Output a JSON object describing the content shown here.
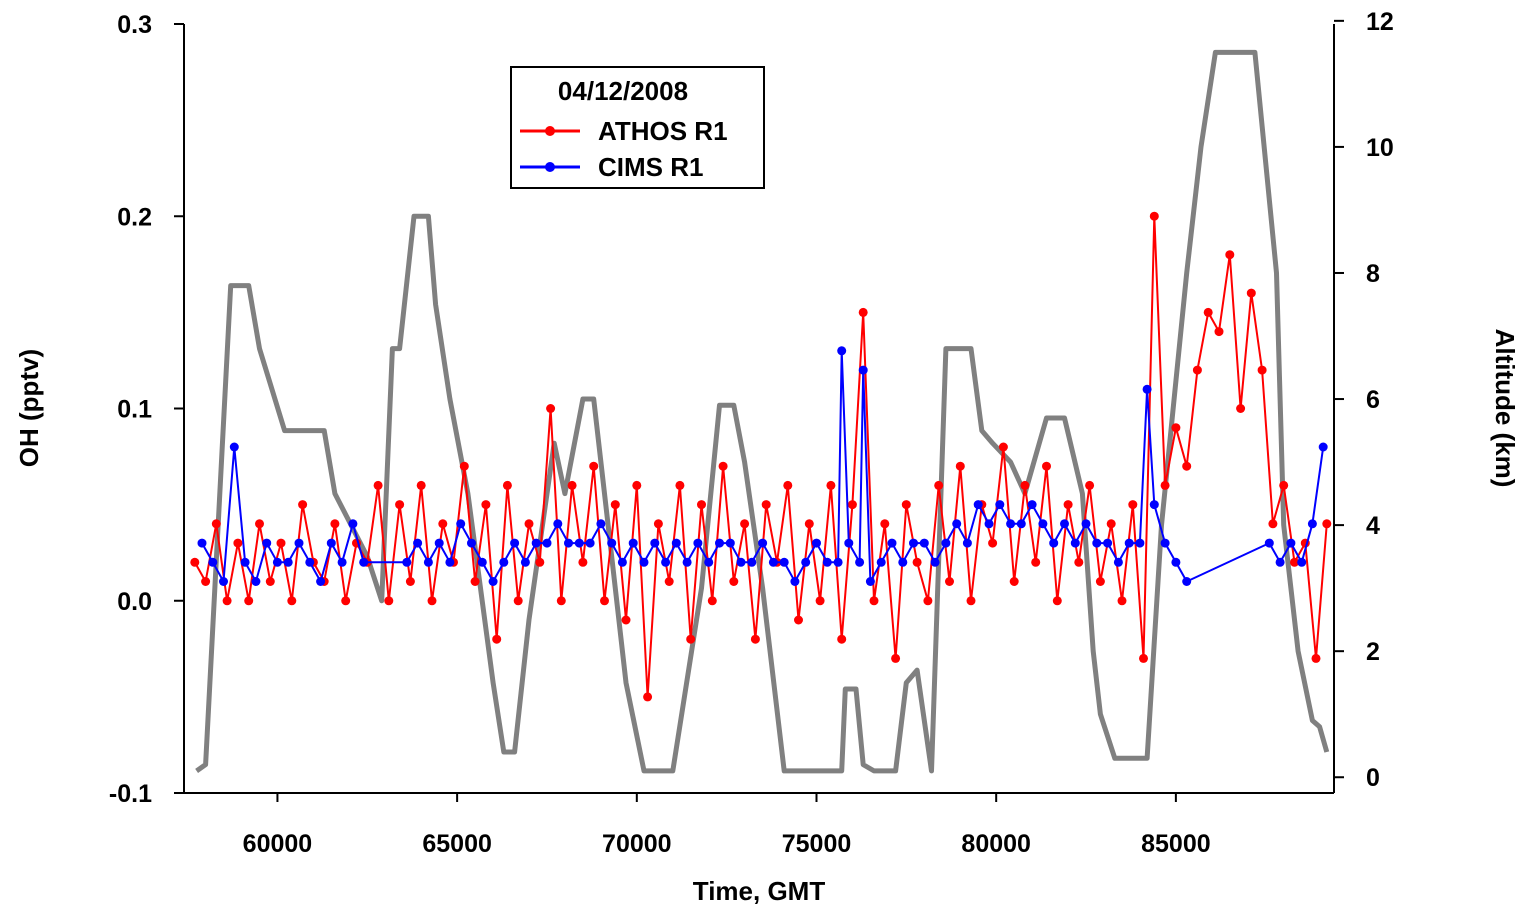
{
  "chart_data": {
    "type": "line",
    "legend": {
      "title": "04/12/2008",
      "placement": "top-center",
      "entries": [
        {
          "label": "ATHOS R1",
          "color": "#ff0000",
          "marker": "circle"
        },
        {
          "label": "CIMS R1",
          "color": "#0000ff",
          "marker": "circle"
        }
      ]
    },
    "xlabel": "Time, GMT",
    "ylabel": "OH (pptv)",
    "y2label": "Altitude (km)",
    "xlim": [
      57400,
      89400
    ],
    "ylim": [
      -0.1,
      0.3
    ],
    "y2lim": [
      -0.25,
      11.95
    ],
    "x_ticks": [
      60000,
      65000,
      70000,
      75000,
      80000,
      85000
    ],
    "x_tick_labels": [
      "60000",
      "65000",
      "70000",
      "75000",
      "80000",
      "85000"
    ],
    "y_ticks": [
      -0.1,
      0.0,
      0.1,
      0.2,
      0.3
    ],
    "y_tick_labels": [
      "-0.1",
      "0.0",
      "0.1",
      "0.2",
      "0.3"
    ],
    "y2_ticks": [
      0,
      2,
      4,
      6,
      8,
      10,
      12
    ],
    "y2_tick_labels": [
      "0",
      "2",
      "4",
      "6",
      "8",
      "10",
      "12"
    ],
    "grid": false,
    "series": [
      {
        "name": "ATHOS R1",
        "axis": "left",
        "color": "#ff0000",
        "x": [
          57700,
          58000,
          58300,
          58600,
          58900,
          59200,
          59500,
          59800,
          60100,
          60400,
          60700,
          61000,
          61300,
          61600,
          61900,
          62200,
          62500,
          62800,
          63100,
          63400,
          63700,
          64000,
          64300,
          64600,
          64900,
          65200,
          65500,
          65800,
          66100,
          66400,
          66700,
          67000,
          67300,
          67600,
          67900,
          68200,
          68500,
          68800,
          69100,
          69400,
          69700,
          70000,
          70300,
          70600,
          70900,
          71200,
          71500,
          71800,
          72100,
          72400,
          72700,
          73000,
          73300,
          73600,
          73900,
          74200,
          74500,
          74800,
          75100,
          75400,
          75700,
          76000,
          76300,
          76600,
          76900,
          77200,
          77500,
          77800,
          78100,
          78400,
          78700,
          79000,
          79300,
          79600,
          79900,
          80200,
          80500,
          80800,
          81100,
          81400,
          81700,
          82000,
          82300,
          82600,
          82900,
          83200,
          83500,
          83800,
          84100,
          84400,
          84700,
          85000,
          85300,
          85600,
          85900,
          86200,
          86500,
          86800,
          87100,
          87400,
          87700,
          88000,
          88300,
          88600,
          88900,
          89200
        ],
        "y": [
          0.02,
          0.01,
          0.04,
          0.0,
          0.03,
          0.0,
          0.04,
          0.01,
          0.03,
          0.0,
          0.05,
          0.02,
          0.01,
          0.04,
          0.0,
          0.03,
          0.02,
          0.06,
          0.0,
          0.05,
          0.01,
          0.06,
          0.0,
          0.04,
          0.02,
          0.07,
          0.01,
          0.05,
          -0.02,
          0.06,
          0.0,
          0.04,
          0.02,
          0.1,
          0.0,
          0.06,
          0.02,
          0.07,
          0.0,
          0.05,
          -0.01,
          0.06,
          -0.05,
          0.04,
          0.01,
          0.06,
          -0.02,
          0.05,
          0.0,
          0.07,
          0.01,
          0.04,
          -0.02,
          0.05,
          0.02,
          0.06,
          -0.01,
          0.04,
          0.0,
          0.06,
          -0.02,
          0.05,
          0.15,
          0.0,
          0.04,
          -0.03,
          0.05,
          0.02,
          0.0,
          0.06,
          0.01,
          0.07,
          0.0,
          0.05,
          0.03,
          0.08,
          0.01,
          0.06,
          0.02,
          0.07,
          0.0,
          0.05,
          0.02,
          0.06,
          0.01,
          0.04,
          0.0,
          0.05,
          -0.03,
          0.2,
          0.06,
          0.09,
          0.07,
          0.12,
          0.15,
          0.14,
          0.18,
          0.1,
          0.16,
          0.12,
          0.04,
          0.06,
          0.02,
          0.03,
          -0.03,
          0.04
        ]
      },
      {
        "name": "CIMS R1",
        "axis": "left",
        "color": "#0000ff",
        "x": [
          57900,
          58200,
          58500,
          58800,
          59100,
          59400,
          59700,
          60000,
          60300,
          60600,
          60900,
          61200,
          61500,
          61800,
          62100,
          62400,
          63600,
          63900,
          64200,
          64500,
          64800,
          65100,
          65400,
          65700,
          66000,
          66300,
          66600,
          66900,
          67200,
          67500,
          67800,
          68100,
          68400,
          68700,
          69000,
          69300,
          69600,
          69900,
          70200,
          70500,
          70800,
          71100,
          71400,
          71700,
          72000,
          72300,
          72600,
          72900,
          73200,
          73500,
          73800,
          74100,
          74400,
          74700,
          75000,
          75300,
          75600,
          75700,
          75900,
          76200,
          76300,
          76500,
          76800,
          77100,
          77400,
          77700,
          78000,
          78300,
          78600,
          78900,
          79200,
          79500,
          79800,
          80100,
          80400,
          80700,
          81000,
          81300,
          81600,
          81900,
          82200,
          82500,
          82800,
          83100,
          83400,
          83700,
          84000,
          84200,
          84400,
          84700,
          85000,
          85300,
          87600,
          87900,
          88200,
          88500,
          88800,
          89100
        ],
        "y": [
          0.03,
          0.02,
          0.01,
          0.08,
          0.02,
          0.01,
          0.03,
          0.02,
          0.02,
          0.03,
          0.02,
          0.01,
          0.03,
          0.02,
          0.04,
          0.02,
          0.02,
          0.03,
          0.02,
          0.03,
          0.02,
          0.04,
          0.03,
          0.02,
          0.01,
          0.02,
          0.03,
          0.02,
          0.03,
          0.03,
          0.04,
          0.03,
          0.03,
          0.03,
          0.04,
          0.03,
          0.02,
          0.03,
          0.02,
          0.03,
          0.02,
          0.03,
          0.02,
          0.03,
          0.02,
          0.03,
          0.03,
          0.02,
          0.02,
          0.03,
          0.02,
          0.02,
          0.01,
          0.02,
          0.03,
          0.02,
          0.02,
          0.13,
          0.03,
          0.02,
          0.12,
          0.01,
          0.02,
          0.03,
          0.02,
          0.03,
          0.03,
          0.02,
          0.03,
          0.04,
          0.03,
          0.05,
          0.04,
          0.05,
          0.04,
          0.04,
          0.05,
          0.04,
          0.03,
          0.04,
          0.03,
          0.04,
          0.03,
          0.03,
          0.02,
          0.03,
          0.03,
          0.11,
          0.05,
          0.03,
          0.02,
          0.01,
          0.03,
          0.02,
          0.03,
          0.02,
          0.04,
          0.08
        ]
      },
      {
        "name": "",
        "axis": "right",
        "color": "#808080",
        "x": [
          57750,
          58000,
          58700,
          59200,
          59500,
          60200,
          60500,
          61300,
          61600,
          62500,
          62900,
          63200,
          63400,
          63800,
          64200,
          64400,
          64800,
          65300,
          66000,
          66300,
          66600,
          67000,
          67500,
          67700,
          68000,
          68500,
          68800,
          69300,
          69700,
          70200,
          70500,
          71000,
          71800,
          72300,
          72700,
          73000,
          73500,
          74100,
          74600,
          75300,
          75700,
          75800,
          76100,
          76300,
          76600,
          77200,
          77500,
          77800,
          78200,
          78600,
          79300,
          79600,
          79900,
          80400,
          80800,
          81400,
          81900,
          82400,
          82700,
          82900,
          83300,
          83700,
          84200,
          84600,
          85300,
          85700,
          86100,
          86500,
          87200,
          87800,
          88000,
          88400,
          88800,
          89000,
          89200
        ],
        "y": [
          0.1,
          0.2,
          7.8,
          7.8,
          6.8,
          5.5,
          5.5,
          5.5,
          4.5,
          3.5,
          2.8,
          6.8,
          6.8,
          8.9,
          8.9,
          7.5,
          6.0,
          4.5,
          1.5,
          0.4,
          0.4,
          2.5,
          4.5,
          5.3,
          4.5,
          6.0,
          6.0,
          3.5,
          1.5,
          0.1,
          0.1,
          0.1,
          3.0,
          5.9,
          5.9,
          5.0,
          3.0,
          0.1,
          0.1,
          0.1,
          0.1,
          1.4,
          1.4,
          0.2,
          0.1,
          0.1,
          1.5,
          1.7,
          0.1,
          6.8,
          6.8,
          5.5,
          5.3,
          5.0,
          4.5,
          5.7,
          5.7,
          4.5,
          2.0,
          1.0,
          0.3,
          0.3,
          0.3,
          4.0,
          8.0,
          10.0,
          11.5,
          11.5,
          11.5,
          8.0,
          4.0,
          2.0,
          0.9,
          0.8,
          0.4
        ]
      }
    ]
  }
}
